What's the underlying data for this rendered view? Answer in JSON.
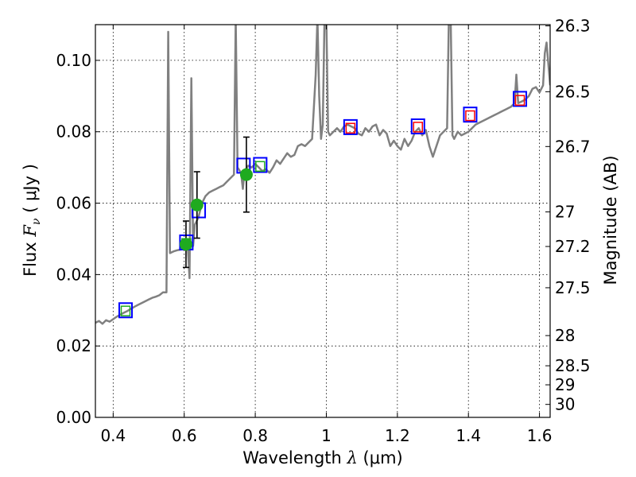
{
  "chart_data": {
    "type": "scatter",
    "xlabel_prefix": "Wavelength",
    "xlabel_symbol": "λ",
    "xlabel_unit": "(μm)",
    "ylabel_prefix": "Flux",
    "ylabel_symbol": "F",
    "ylabel_subscript": "ν",
    "ylabel_unit": "( μJy )",
    "y2label": "Magnitude (AB)",
    "xlim": [
      0.35,
      1.63
    ],
    "ylim": [
      0.0,
      0.11
    ],
    "grid": true,
    "x_ticks": [
      {
        "value": 0.4,
        "label": "0.4"
      },
      {
        "value": 0.6,
        "label": "0.6"
      },
      {
        "value": 0.8,
        "label": "0.8"
      },
      {
        "value": 1.0,
        "label": "1"
      },
      {
        "value": 1.2,
        "label": "1.2"
      },
      {
        "value": 1.4,
        "label": "1.4"
      },
      {
        "value": 1.6,
        "label": "1.6"
      }
    ],
    "y_ticks": [
      {
        "value": 0.0,
        "label": "0.00"
      },
      {
        "value": 0.02,
        "label": "0.02"
      },
      {
        "value": 0.04,
        "label": "0.04"
      },
      {
        "value": 0.06,
        "label": "0.06"
      },
      {
        "value": 0.08,
        "label": "0.08"
      },
      {
        "value": 0.1,
        "label": "0.10"
      }
    ],
    "y2_ticks": [
      {
        "mag": 26.3,
        "label": "26.3"
      },
      {
        "mag": 26.5,
        "label": "26.5"
      },
      {
        "mag": 26.7,
        "label": "26.7"
      },
      {
        "mag": 27.0,
        "label": "27"
      },
      {
        "mag": 27.2,
        "label": "27.2"
      },
      {
        "mag": 27.5,
        "label": "27.5"
      },
      {
        "mag": 28.0,
        "label": "28"
      },
      {
        "mag": 28.5,
        "label": "28.5"
      },
      {
        "mag": 29.0,
        "label": "29"
      },
      {
        "mag": 30.0,
        "label": "30"
      }
    ],
    "model_spectrum": {
      "color": "#808080",
      "points": [
        [
          0.35,
          0.0265
        ],
        [
          0.36,
          0.027
        ],
        [
          0.37,
          0.0262
        ],
        [
          0.38,
          0.0272
        ],
        [
          0.39,
          0.0268
        ],
        [
          0.4,
          0.0275
        ],
        [
          0.41,
          0.0282
        ],
        [
          0.42,
          0.0288
        ],
        [
          0.43,
          0.0293
        ],
        [
          0.44,
          0.0298
        ],
        [
          0.45,
          0.0304
        ],
        [
          0.46,
          0.031
        ],
        [
          0.47,
          0.0315
        ],
        [
          0.48,
          0.032
        ],
        [
          0.49,
          0.0325
        ],
        [
          0.5,
          0.033
        ],
        [
          0.51,
          0.0335
        ],
        [
          0.52,
          0.0338
        ],
        [
          0.53,
          0.0342
        ],
        [
          0.54,
          0.035
        ],
        [
          0.55,
          0.035
        ],
        [
          0.555,
          0.108
        ],
        [
          0.56,
          0.046
        ],
        [
          0.57,
          0.0465
        ],
        [
          0.58,
          0.0468
        ],
        [
          0.59,
          0.047
        ],
        [
          0.6,
          0.0475
        ],
        [
          0.61,
          0.048
        ],
        [
          0.615,
          0.039
        ],
        [
          0.62,
          0.095
        ],
        [
          0.625,
          0.048
        ],
        [
          0.63,
          0.054
        ],
        [
          0.64,
          0.056
        ],
        [
          0.65,
          0.06
        ],
        [
          0.66,
          0.062
        ],
        [
          0.67,
          0.063
        ],
        [
          0.68,
          0.0635
        ],
        [
          0.69,
          0.064
        ],
        [
          0.7,
          0.0645
        ],
        [
          0.71,
          0.065
        ],
        [
          0.72,
          0.066
        ],
        [
          0.73,
          0.067
        ],
        [
          0.74,
          0.068
        ],
        [
          0.745,
          0.112
        ],
        [
          0.75,
          0.07
        ],
        [
          0.76,
          0.0685
        ],
        [
          0.765,
          0.064
        ],
        [
          0.77,
          0.069
        ],
        [
          0.78,
          0.0705
        ],
        [
          0.79,
          0.07
        ],
        [
          0.8,
          0.071
        ],
        [
          0.81,
          0.07
        ],
        [
          0.82,
          0.069
        ],
        [
          0.83,
          0.0695
        ],
        [
          0.84,
          0.0685
        ],
        [
          0.85,
          0.07
        ],
        [
          0.86,
          0.072
        ],
        [
          0.87,
          0.071
        ],
        [
          0.88,
          0.0725
        ],
        [
          0.89,
          0.074
        ],
        [
          0.9,
          0.073
        ],
        [
          0.91,
          0.0735
        ],
        [
          0.92,
          0.076
        ],
        [
          0.93,
          0.0765
        ],
        [
          0.94,
          0.076
        ],
        [
          0.95,
          0.077
        ],
        [
          0.96,
          0.078
        ],
        [
          0.97,
          0.096
        ],
        [
          0.975,
          0.112
        ],
        [
          0.98,
          0.09
        ],
        [
          0.985,
          0.078
        ],
        [
          0.99,
          0.082
        ],
        [
          0.995,
          0.112
        ],
        [
          1.0,
          0.112
        ],
        [
          1.005,
          0.08
        ],
        [
          1.01,
          0.079
        ],
        [
          1.02,
          0.08
        ],
        [
          1.03,
          0.081
        ],
        [
          1.04,
          0.08
        ],
        [
          1.05,
          0.0815
        ],
        [
          1.06,
          0.082
        ],
        [
          1.07,
          0.0815
        ],
        [
          1.08,
          0.081
        ],
        [
          1.09,
          0.0795
        ],
        [
          1.1,
          0.079
        ],
        [
          1.11,
          0.081
        ],
        [
          1.12,
          0.08
        ],
        [
          1.13,
          0.0815
        ],
        [
          1.14,
          0.082
        ],
        [
          1.15,
          0.079
        ],
        [
          1.16,
          0.0805
        ],
        [
          1.17,
          0.0795
        ],
        [
          1.18,
          0.076
        ],
        [
          1.19,
          0.0775
        ],
        [
          1.2,
          0.076
        ],
        [
          1.21,
          0.075
        ],
        [
          1.22,
          0.078
        ],
        [
          1.23,
          0.076
        ],
        [
          1.24,
          0.0775
        ],
        [
          1.25,
          0.08
        ],
        [
          1.26,
          0.081
        ],
        [
          1.27,
          0.079
        ],
        [
          1.28,
          0.0805
        ],
        [
          1.29,
          0.076
        ],
        [
          1.3,
          0.073
        ],
        [
          1.31,
          0.076
        ],
        [
          1.32,
          0.079
        ],
        [
          1.33,
          0.08
        ],
        [
          1.34,
          0.081
        ],
        [
          1.345,
          0.112
        ],
        [
          1.35,
          0.112
        ],
        [
          1.355,
          0.079
        ],
        [
          1.36,
          0.078
        ],
        [
          1.37,
          0.08
        ],
        [
          1.38,
          0.079
        ],
        [
          1.39,
          0.0795
        ],
        [
          1.4,
          0.08
        ],
        [
          1.41,
          0.081
        ],
        [
          1.42,
          0.082
        ],
        [
          1.43,
          0.0825
        ],
        [
          1.44,
          0.083
        ],
        [
          1.45,
          0.0835
        ],
        [
          1.46,
          0.084
        ],
        [
          1.47,
          0.0845
        ],
        [
          1.48,
          0.085
        ],
        [
          1.49,
          0.0855
        ],
        [
          1.5,
          0.086
        ],
        [
          1.51,
          0.0865
        ],
        [
          1.52,
          0.087
        ],
        [
          1.53,
          0.088
        ],
        [
          1.535,
          0.096
        ],
        [
          1.54,
          0.088
        ],
        [
          1.55,
          0.0885
        ],
        [
          1.56,
          0.089
        ],
        [
          1.57,
          0.09
        ],
        [
          1.58,
          0.092
        ],
        [
          1.59,
          0.0925
        ],
        [
          1.6,
          0.091
        ],
        [
          1.61,
          0.093
        ],
        [
          1.615,
          0.102
        ],
        [
          1.62,
          0.105
        ],
        [
          1.63,
          0.093
        ]
      ]
    },
    "observed_points": {
      "color": "#1faa1f",
      "points": [
        {
          "x": 0.605,
          "y": 0.0485,
          "yerr": 0.0065
        },
        {
          "x": 0.636,
          "y": 0.0595,
          "yerr": 0.0093
        },
        {
          "x": 0.775,
          "y": 0.068,
          "yerr": 0.0105
        }
      ]
    },
    "filter_boxes": {
      "color": "#0000ff",
      "points": [
        {
          "x": 0.435,
          "y": 0.03
        },
        {
          "x": 0.606,
          "y": 0.049
        },
        {
          "x": 0.641,
          "y": 0.058
        },
        {
          "x": 0.767,
          "y": 0.0705
        },
        {
          "x": 0.814,
          "y": 0.0707
        },
        {
          "x": 1.068,
          "y": 0.0813
        },
        {
          "x": 1.258,
          "y": 0.0815
        },
        {
          "x": 1.405,
          "y": 0.0848
        },
        {
          "x": 1.545,
          "y": 0.0892
        }
      ]
    },
    "model_photometry_green": {
      "color": "#1faa1f",
      "points": [
        {
          "x": 0.435,
          "y": 0.0298
        },
        {
          "x": 0.606,
          "y": 0.0487
        },
        {
          "x": 0.814,
          "y": 0.0703
        }
      ]
    },
    "model_photometry_red": {
      "color": "#ff0000",
      "points": [
        {
          "x": 1.068,
          "y": 0.081
        },
        {
          "x": 1.258,
          "y": 0.0813
        },
        {
          "x": 1.405,
          "y": 0.0845
        },
        {
          "x": 1.545,
          "y": 0.0888
        }
      ]
    }
  }
}
